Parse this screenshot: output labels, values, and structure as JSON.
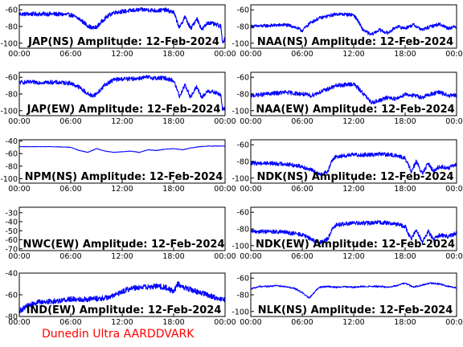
{
  "footer_text": "Dunedin Ultra AARDDVARK",
  "series_color": "#0000ff",
  "footer_color": "#ff0000",
  "chart_data": [
    {
      "type": "line",
      "title": "JAP(NS) Amplitude: 12-Feb-2024",
      "xlabel": "",
      "ylabel": "",
      "xlim": [
        "00:00",
        "24:00"
      ],
      "xticks": [
        "00:00",
        "06:00",
        "12:00",
        "18:00",
        "00:00"
      ],
      "ylim": [
        -106,
        -54
      ],
      "yticks": [
        -60,
        -80,
        -100
      ],
      "noise": 2.5,
      "series": [
        {
          "x": [
            0,
            2,
            4,
            6,
            7,
            8,
            8.5,
            9,
            10,
            11,
            12,
            13,
            14,
            15,
            16,
            17,
            18,
            18.7,
            19.3,
            20,
            20.7,
            21.3,
            22,
            23,
            23.5,
            23.7,
            24
          ],
          "values": [
            -65,
            -65,
            -65,
            -66,
            -71,
            -79,
            -82,
            -81,
            -70,
            -63,
            -62,
            -61,
            -60,
            -60,
            -61,
            -60,
            -63,
            -82,
            -68,
            -83,
            -70,
            -84,
            -75,
            -78,
            -80,
            -98,
            -95
          ]
        }
      ]
    },
    {
      "type": "line",
      "title": "NAA(NS) Amplitude: 12-Feb-2024",
      "xlabel": "",
      "ylabel": "",
      "xlim": [
        "00:00",
        "24:00"
      ],
      "xticks": [
        "00:00",
        "06:00",
        "12:00",
        "18:00",
        "00:00"
      ],
      "ylim": [
        -106,
        -54
      ],
      "yticks": [
        -60,
        -80,
        -100
      ],
      "noise": 2,
      "series": [
        {
          "x": [
            0,
            2,
            4,
            5,
            6,
            7,
            8,
            10,
            12,
            12.5,
            13,
            14,
            15,
            16,
            17,
            18,
            19,
            20,
            21,
            22,
            23,
            24
          ],
          "values": [
            -80,
            -79,
            -78,
            -80,
            -85,
            -75,
            -70,
            -65,
            -66,
            -73,
            -83,
            -90,
            -84,
            -88,
            -80,
            -82,
            -78,
            -84,
            -80,
            -77,
            -82,
            -80
          ]
        }
      ]
    },
    {
      "type": "line",
      "title": "JAP(EW) Amplitude: 12-Feb-2024",
      "xlabel": "",
      "ylabel": "",
      "xlim": [
        "00:00",
        "24:00"
      ],
      "xticks": [
        "00:00",
        "06:00",
        "12:00",
        "18:00",
        "00:00"
      ],
      "ylim": [
        -106,
        -54
      ],
      "yticks": [
        -60,
        -80,
        -100
      ],
      "noise": 2.5,
      "series": [
        {
          "x": [
            0,
            2,
            4,
            6,
            7,
            8,
            8.5,
            9,
            10,
            11,
            12,
            13,
            14,
            15,
            16,
            17,
            18,
            18.7,
            19.3,
            20,
            20.7,
            21.3,
            22,
            23,
            23.5,
            23.7,
            24
          ],
          "values": [
            -66,
            -66,
            -66,
            -67,
            -72,
            -80,
            -82,
            -80,
            -69,
            -63,
            -62,
            -62,
            -61,
            -60,
            -61,
            -61,
            -64,
            -83,
            -69,
            -84,
            -71,
            -85,
            -76,
            -79,
            -81,
            -99,
            -97
          ]
        }
      ]
    },
    {
      "type": "line",
      "title": "NAA(EW) Amplitude: 12-Feb-2024",
      "xlabel": "",
      "ylabel": "",
      "xlim": [
        "00:00",
        "24:00"
      ],
      "xticks": [
        "00:00",
        "06:00",
        "12:00",
        "18:00",
        "00:00"
      ],
      "ylim": [
        -106,
        -54
      ],
      "yticks": [
        -60,
        -80,
        -100
      ],
      "noise": 2.5,
      "series": [
        {
          "x": [
            0,
            2,
            4,
            6,
            7,
            8,
            10,
            12,
            13,
            14,
            15,
            16,
            17,
            18,
            19,
            20,
            21,
            22,
            23,
            24
          ],
          "values": [
            -82,
            -80,
            -78,
            -80,
            -82,
            -78,
            -70,
            -68,
            -78,
            -90,
            -88,
            -84,
            -86,
            -80,
            -82,
            -84,
            -80,
            -78,
            -82,
            -82
          ]
        }
      ]
    },
    {
      "type": "line",
      "title": "NPM(NS) Amplitude: 12-Feb-2024",
      "xlabel": "",
      "ylabel": "",
      "xlim": [
        "00:00",
        "24:00"
      ],
      "xticks": [
        "00:00",
        "06:00",
        "12:00",
        "18:00",
        "00:00"
      ],
      "ylim": [
        -107,
        -38
      ],
      "yticks": [
        -40,
        -60,
        -80,
        -100
      ],
      "noise": 0.4,
      "series": [
        {
          "x": [
            0,
            2,
            4,
            6,
            7,
            8,
            9,
            10,
            11,
            12,
            13,
            14,
            15,
            16,
            17,
            18,
            19,
            20,
            21,
            22,
            24
          ],
          "values": [
            -49,
            -49,
            -49,
            -50,
            -55,
            -58,
            -52,
            -56,
            -58,
            -57,
            -56,
            -58,
            -54,
            -55,
            -53,
            -52,
            -54,
            -51,
            -49,
            -48,
            -48
          ]
        }
      ]
    },
    {
      "type": "line",
      "title": "NDK(NS) Amplitude: 12-Feb-2024",
      "xlabel": "",
      "ylabel": "",
      "xlim": [
        "00:00",
        "24:00"
      ],
      "xticks": [
        "00:00",
        "06:00",
        "12:00",
        "18:00",
        "00:00"
      ],
      "ylim": [
        -106,
        -54
      ],
      "yticks": [
        -60,
        -80,
        -100
      ],
      "noise": 2.5,
      "series": [
        {
          "x": [
            0,
            2,
            4,
            6,
            7,
            8,
            9,
            9.5,
            10,
            11,
            12,
            13,
            14,
            15,
            16,
            17,
            18,
            18.7,
            19.3,
            20,
            20.7,
            21.3,
            22,
            23,
            24
          ],
          "values": [
            -82,
            -82,
            -83,
            -86,
            -90,
            -96,
            -92,
            -78,
            -74,
            -73,
            -72,
            -72,
            -72,
            -71,
            -72,
            -73,
            -76,
            -92,
            -80,
            -95,
            -82,
            -92,
            -86,
            -88,
            -84
          ]
        }
      ]
    },
    {
      "type": "line",
      "title": "NWC(EW) Amplitude: 12-Feb-2024",
      "xlabel": "",
      "ylabel": "",
      "xlim": [
        "00:00",
        "24:00"
      ],
      "xticks": [
        "00:00",
        "06:00",
        "12:00",
        "18:00",
        "00:00"
      ],
      "ylim": [
        -72,
        -24
      ],
      "yticks": [
        -30,
        -40,
        -50,
        -60,
        -70
      ],
      "series": []
    },
    {
      "type": "line",
      "title": "NDK(EW) Amplitude: 12-Feb-2024",
      "xlabel": "",
      "ylabel": "",
      "xlim": [
        "00:00",
        "24:00"
      ],
      "xticks": [
        "00:00",
        "06:00",
        "12:00",
        "18:00",
        "00:00"
      ],
      "ylim": [
        -106,
        -54
      ],
      "yticks": [
        -60,
        -80,
        -100
      ],
      "noise": 2.5,
      "series": [
        {
          "x": [
            0,
            2,
            4,
            6,
            7,
            8,
            9,
            9.5,
            10,
            11,
            12,
            13,
            14,
            15,
            16,
            17,
            18,
            18.7,
            19.3,
            20,
            20.7,
            21.3,
            22,
            23,
            24
          ],
          "values": [
            -83,
            -83,
            -84,
            -87,
            -92,
            -97,
            -92,
            -79,
            -75,
            -74,
            -73,
            -73,
            -73,
            -72,
            -73,
            -74,
            -77,
            -93,
            -80,
            -96,
            -83,
            -93,
            -87,
            -89,
            -85
          ]
        }
      ]
    },
    {
      "type": "line",
      "title": "IND(EW) Amplitude: 12-Feb-2024",
      "xlabel": "",
      "ylabel": "",
      "xlim": [
        "00:00",
        "24:00"
      ],
      "xticks": [
        "00:00",
        "06:00",
        "12:00",
        "18:00",
        "00:00"
      ],
      "ylim": [
        -80,
        -40
      ],
      "yticks": [
        -40,
        -60,
        -80
      ],
      "noise": 2.5,
      "series": [
        {
          "x": [
            0,
            1,
            2,
            4,
            6,
            8,
            10,
            11,
            12,
            13,
            14,
            15,
            16,
            17,
            18,
            18.5,
            19,
            20,
            21,
            22,
            23,
            24
          ],
          "values": [
            -75,
            -70,
            -67,
            -66,
            -64,
            -64,
            -63,
            -61,
            -57,
            -54,
            -53,
            -53,
            -52,
            -53,
            -57,
            -50,
            -53,
            -55,
            -58,
            -60,
            -63,
            -65
          ]
        }
      ]
    },
    {
      "type": "line",
      "title": "NLK(NS) Amplitude: 12-Feb-2024",
      "xlabel": "",
      "ylabel": "",
      "xlim": [
        "00:00",
        "24:00"
      ],
      "xticks": [
        "00:00",
        "06:00",
        "12:00",
        "18:00",
        "00:00"
      ],
      "ylim": [
        -106,
        -54
      ],
      "yticks": [
        -60,
        -80,
        -100
      ],
      "noise": 1,
      "series": [
        {
          "x": [
            0,
            1,
            2,
            3,
            4,
            5,
            6,
            6.8,
            7.5,
            8,
            9,
            10,
            11,
            12,
            13,
            14,
            15,
            16,
            17,
            18,
            19,
            20,
            21,
            22,
            23,
            24
          ],
          "values": [
            -73,
            -70,
            -70,
            -69,
            -70,
            -72,
            -77,
            -84,
            -76,
            -71,
            -70,
            -71,
            -70,
            -71,
            -70,
            -70,
            -70,
            -71,
            -69,
            -66,
            -71,
            -68,
            -66,
            -67,
            -70,
            -72
          ]
        }
      ]
    }
  ]
}
